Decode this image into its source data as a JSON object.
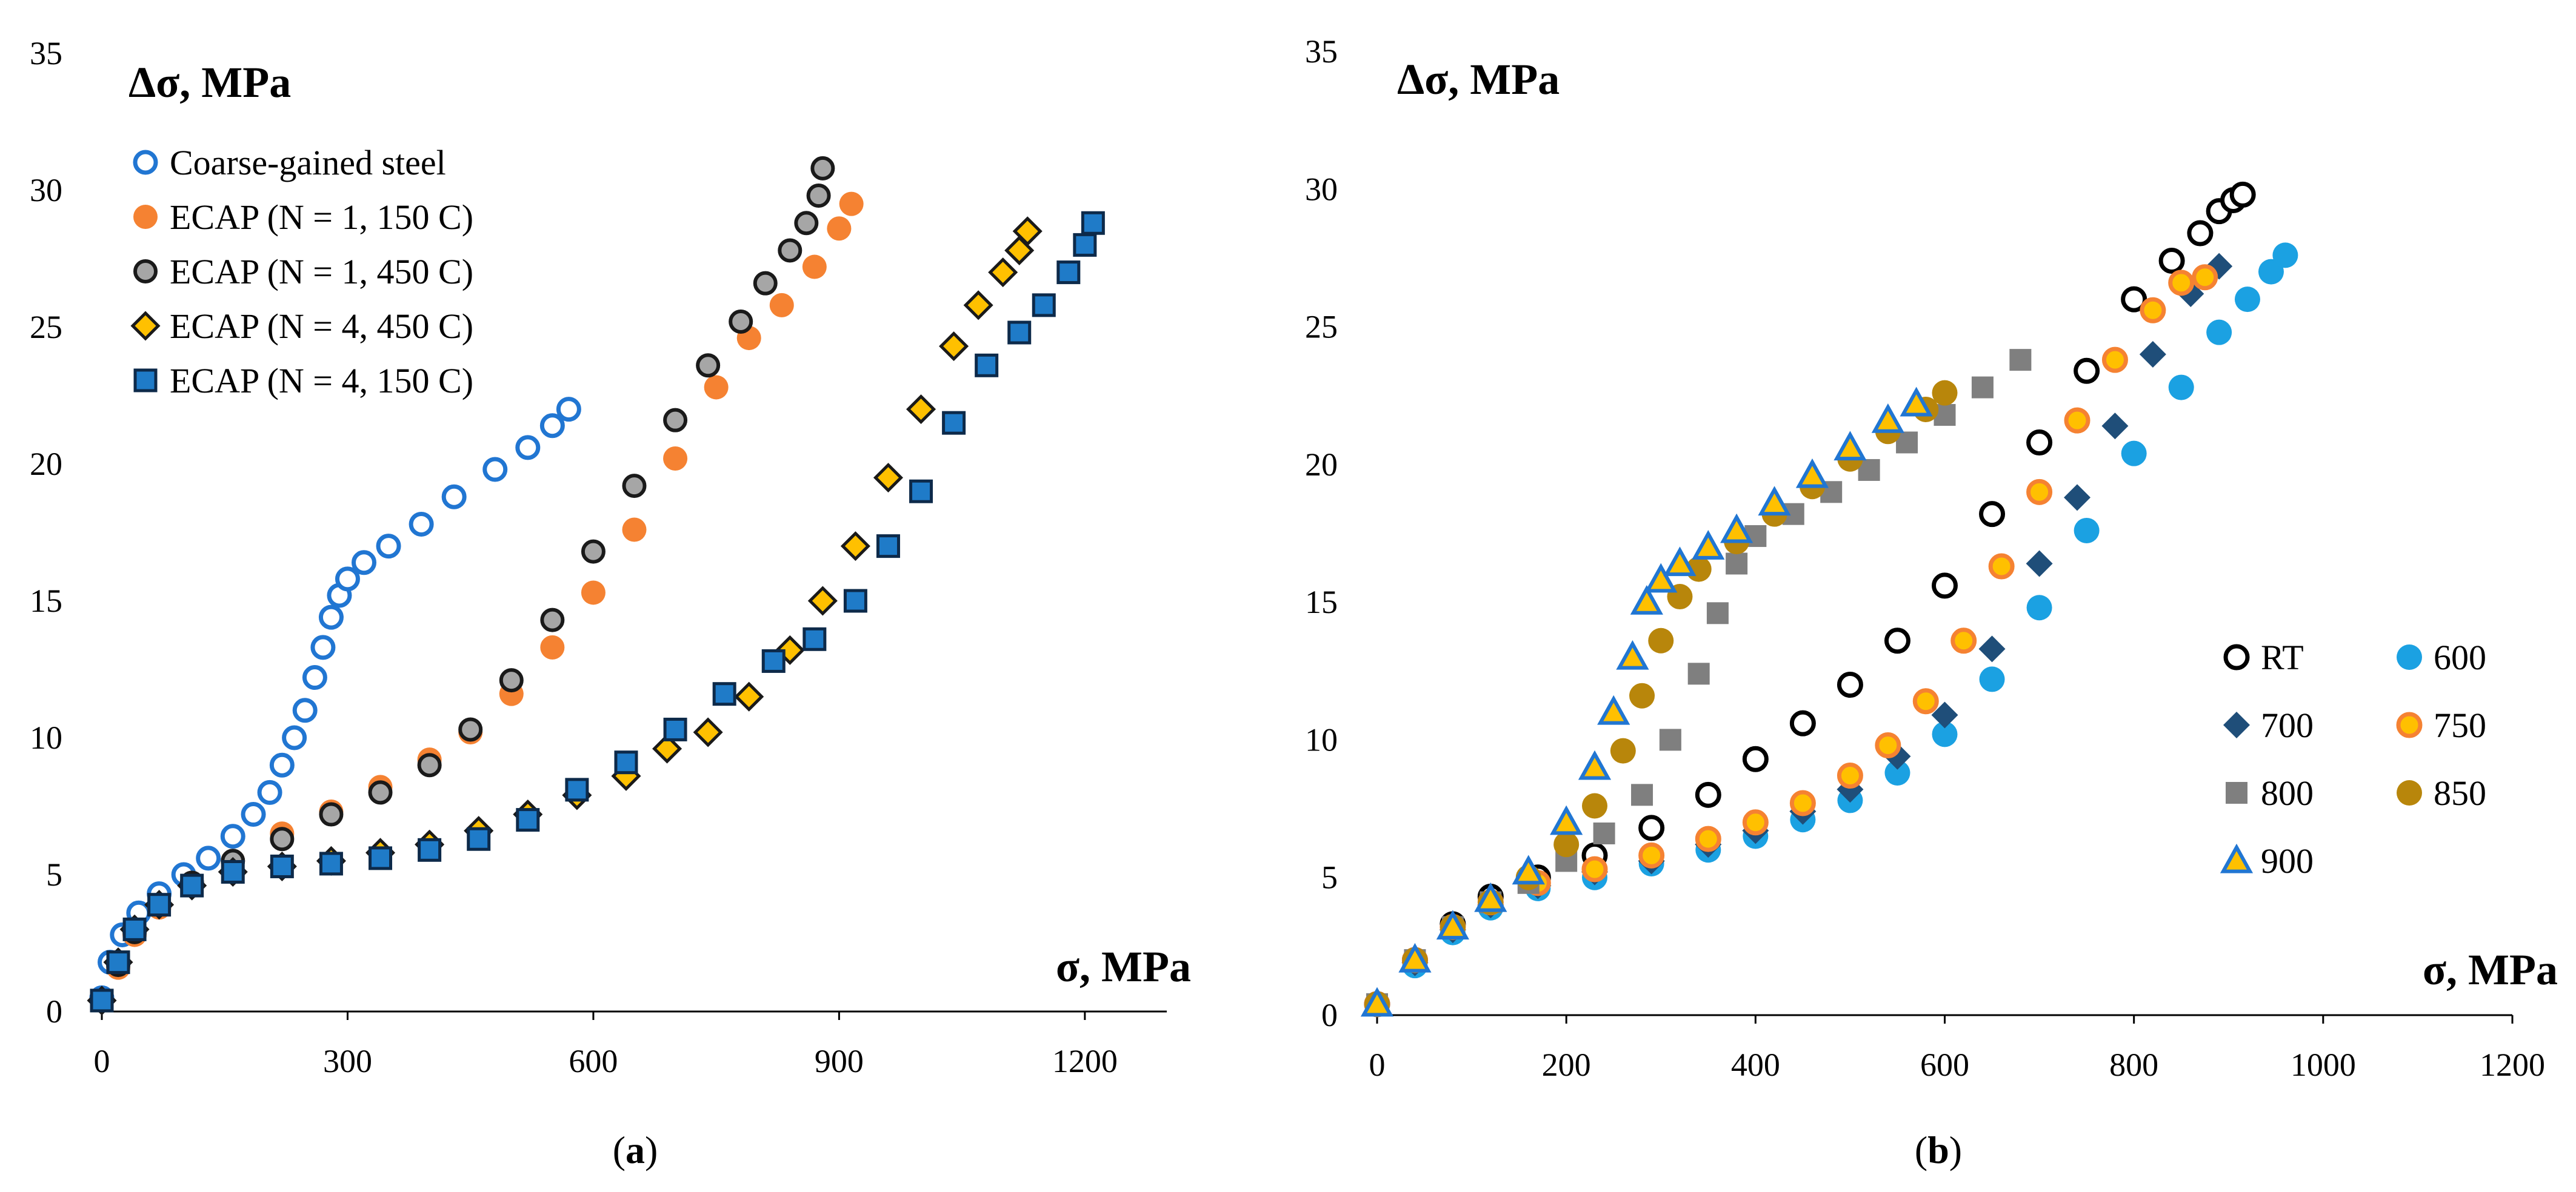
{
  "colors": {
    "coarse": "#2176d2",
    "orange": "#f58232",
    "gray_fill": "#a6a6a6",
    "gold": "#ffc000",
    "blue_sq": "#1f7bc8",
    "sky": "#1ba1e2",
    "navy": "#1f4e79",
    "gray_dark": "#7f7f7f",
    "olive": "#b8860b"
  },
  "chart_data": [
    {
      "type": "scatter",
      "caption": "(a)",
      "caption_open": "(",
      "caption_letter": "a",
      "caption_close": ")",
      "xlabel": "σ, MPa",
      "ylabel": "Δσ, MPa",
      "xlim": [
        0,
        1300
      ],
      "ylim": [
        0,
        35
      ],
      "x_ticks": [
        0,
        300,
        600,
        900,
        1200
      ],
      "y_ticks": [
        0,
        5,
        10,
        15,
        20,
        25,
        30,
        35
      ],
      "series": [
        {
          "name": "Coarse-gained steel",
          "marker": "circle-open",
          "color": "#2176d2",
          "x": [
            0,
            10,
            25,
            45,
            70,
            100,
            130,
            160,
            185,
            205,
            220,
            235,
            248,
            260,
            270,
            280,
            290,
            300,
            320,
            350,
            390,
            430,
            480,
            520,
            550,
            570
          ],
          "y": [
            0.5,
            1.8,
            2.8,
            3.6,
            4.3,
            5.0,
            5.6,
            6.4,
            7.2,
            8.0,
            9.0,
            10.0,
            11.0,
            12.2,
            13.3,
            14.4,
            15.2,
            15.8,
            16.4,
            17.0,
            17.8,
            18.8,
            19.8,
            20.6,
            21.4,
            22.0
          ]
        },
        {
          "name": "ECAP (N = 1, 150 C)",
          "marker": "circle-filled",
          "color": "#f58232",
          "x": [
            0,
            20,
            40,
            70,
            110,
            160,
            220,
            280,
            340,
            400,
            450,
            500,
            550,
            600,
            650,
            700,
            750,
            790,
            830,
            870,
            900,
            915
          ],
          "y": [
            0.4,
            1.6,
            2.8,
            3.8,
            4.7,
            5.5,
            6.5,
            7.3,
            8.2,
            9.2,
            10.2,
            11.6,
            13.3,
            15.3,
            17.6,
            20.2,
            22.8,
            24.6,
            25.8,
            27.2,
            28.6,
            29.5
          ]
        },
        {
          "name": "ECAP (N = 1, 450 C)",
          "marker": "circle-gray",
          "color": "#a6a6a6",
          "x": [
            0,
            20,
            40,
            70,
            110,
            160,
            220,
            280,
            340,
            400,
            450,
            500,
            550,
            600,
            650,
            700,
            740,
            780,
            810,
            840,
            860,
            875,
            880
          ],
          "y": [
            0.4,
            1.7,
            2.9,
            3.9,
            4.7,
            5.5,
            6.3,
            7.2,
            8.0,
            9.0,
            10.3,
            12.1,
            14.3,
            16.8,
            19.2,
            21.6,
            23.6,
            25.2,
            26.6,
            27.8,
            28.8,
            29.8,
            30.8
          ]
        },
        {
          "name": "ECAP (N = 4, 450 C)",
          "marker": "diamond",
          "color": "#ffc000",
          "x": [
            0,
            20,
            40,
            70,
            110,
            160,
            220,
            280,
            340,
            400,
            460,
            520,
            580,
            640,
            690,
            740,
            790,
            840,
            880,
            920,
            960,
            1000,
            1040,
            1070,
            1100,
            1120,
            1130
          ],
          "y": [
            0.4,
            1.8,
            3.0,
            3.9,
            4.6,
            5.1,
            5.3,
            5.5,
            5.8,
            6.1,
            6.6,
            7.2,
            7.9,
            8.6,
            9.6,
            10.2,
            11.5,
            13.2,
            15.0,
            17.0,
            19.5,
            22.0,
            24.3,
            25.8,
            27.0,
            27.8,
            28.5
          ]
        },
        {
          "name": "ECAP (N = 4, 150 C)",
          "marker": "square",
          "color": "#1f7bc8",
          "x": [
            0,
            20,
            40,
            70,
            110,
            160,
            220,
            280,
            340,
            400,
            460,
            520,
            580,
            640,
            700,
            760,
            820,
            870,
            920,
            960,
            1000,
            1040,
            1080,
            1120,
            1150,
            1180,
            1200,
            1210
          ],
          "y": [
            0.4,
            1.8,
            3.0,
            3.9,
            4.6,
            5.1,
            5.3,
            5.4,
            5.6,
            5.9,
            6.3,
            7.0,
            8.1,
            9.1,
            10.3,
            11.6,
            12.8,
            13.6,
            15.0,
            17.0,
            19.0,
            21.5,
            23.6,
            24.8,
            25.8,
            27.0,
            28.0,
            28.8
          ]
        }
      ]
    },
    {
      "type": "scatter",
      "caption": "(b)",
      "caption_open": "(",
      "caption_letter": "b",
      "caption_close": ")",
      "xlabel": "σ, MPa",
      "ylabel": "Δσ, MPa",
      "xlim": [
        0,
        1200
      ],
      "ylim": [
        0,
        35
      ],
      "x_ticks": [
        0,
        200,
        400,
        600,
        800,
        1000,
        1200
      ],
      "y_ticks": [
        0,
        5,
        10,
        15,
        20,
        25,
        30,
        35
      ],
      "series": [
        {
          "name": "RT",
          "marker": "circle-open",
          "color": "#000000",
          "x": [
            0,
            40,
            80,
            120,
            170,
            230,
            290,
            350,
            400,
            450,
            500,
            550,
            600,
            650,
            700,
            750,
            800,
            840,
            870,
            890,
            905,
            915
          ],
          "y": [
            0.4,
            2.0,
            3.3,
            4.3,
            5.0,
            5.8,
            6.8,
            8.0,
            9.3,
            10.6,
            12.0,
            13.6,
            15.6,
            18.2,
            20.8,
            23.4,
            26.0,
            27.4,
            28.4,
            29.2,
            29.6,
            29.8
          ]
        },
        {
          "name": "600",
          "marker": "circle-filled",
          "color": "#1ba1e2",
          "x": [
            0,
            40,
            80,
            120,
            170,
            230,
            290,
            350,
            400,
            450,
            500,
            550,
            600,
            650,
            700,
            750,
            800,
            850,
            890,
            920,
            945,
            960
          ],
          "y": [
            0.4,
            1.8,
            3.0,
            3.9,
            4.6,
            5.0,
            5.5,
            6.0,
            6.5,
            7.1,
            7.8,
            8.8,
            10.2,
            12.2,
            14.8,
            17.6,
            20.4,
            22.8,
            24.8,
            26.0,
            27.0,
            27.6
          ]
        },
        {
          "name": "700",
          "marker": "diamond",
          "color": "#1f4e79",
          "x": [
            0,
            40,
            80,
            120,
            170,
            230,
            290,
            350,
            400,
            450,
            500,
            550,
            600,
            650,
            700,
            740,
            780,
            820,
            860,
            890
          ],
          "y": [
            0.4,
            1.9,
            3.1,
            4.0,
            4.7,
            5.2,
            5.6,
            6.2,
            6.7,
            7.4,
            8.2,
            9.4,
            10.9,
            13.3,
            16.4,
            18.8,
            21.4,
            24.0,
            26.2,
            27.2
          ]
        },
        {
          "name": "750",
          "marker": "circle-ring",
          "color": "#f58232",
          "x": [
            0,
            40,
            80,
            120,
            170,
            230,
            290,
            350,
            400,
            450,
            500,
            540,
            580,
            620,
            660,
            700,
            740,
            780,
            820,
            850,
            875
          ],
          "y": [
            0.4,
            2.0,
            3.2,
            4.1,
            4.8,
            5.3,
            5.8,
            6.4,
            7.0,
            7.7,
            8.7,
            9.8,
            11.4,
            13.6,
            16.3,
            19.0,
            21.6,
            23.8,
            25.6,
            26.6,
            26.8
          ]
        },
        {
          "name": "800",
          "marker": "square",
          "color": "#7f7f7f",
          "x": [
            0,
            40,
            80,
            120,
            160,
            200,
            240,
            280,
            310,
            340,
            360,
            380,
            400,
            440,
            480,
            520,
            560,
            600,
            640,
            680
          ],
          "y": [
            0.4,
            2.0,
            3.2,
            4.1,
            4.8,
            5.6,
            6.6,
            8.0,
            10.0,
            12.4,
            14.6,
            16.4,
            17.4,
            18.2,
            19.0,
            19.8,
            20.8,
            21.8,
            22.8,
            23.8
          ]
        },
        {
          "name": "850",
          "marker": "circle-filled",
          "color": "#b8860b",
          "x": [
            0,
            40,
            80,
            120,
            160,
            200,
            230,
            260,
            280,
            300,
            320,
            340,
            380,
            420,
            460,
            500,
            540,
            580,
            600
          ],
          "y": [
            0.4,
            2.0,
            3.2,
            4.1,
            5.0,
            6.2,
            7.6,
            9.6,
            11.6,
            13.6,
            15.2,
            16.2,
            17.2,
            18.2,
            19.2,
            20.2,
            21.2,
            22.0,
            22.6
          ]
        },
        {
          "name": "900",
          "marker": "triangle",
          "color": "#ffc000",
          "x": [
            0,
            40,
            80,
            120,
            160,
            200,
            230,
            250,
            270,
            285,
            300,
            320,
            350,
            380,
            420,
            460,
            500,
            540,
            570
          ],
          "y": [
            0.4,
            2.0,
            3.2,
            4.2,
            5.2,
            7.0,
            9.0,
            11.0,
            13.0,
            15.0,
            15.8,
            16.4,
            17.0,
            17.6,
            18.6,
            19.6,
            20.6,
            21.6,
            22.2
          ]
        }
      ]
    }
  ]
}
